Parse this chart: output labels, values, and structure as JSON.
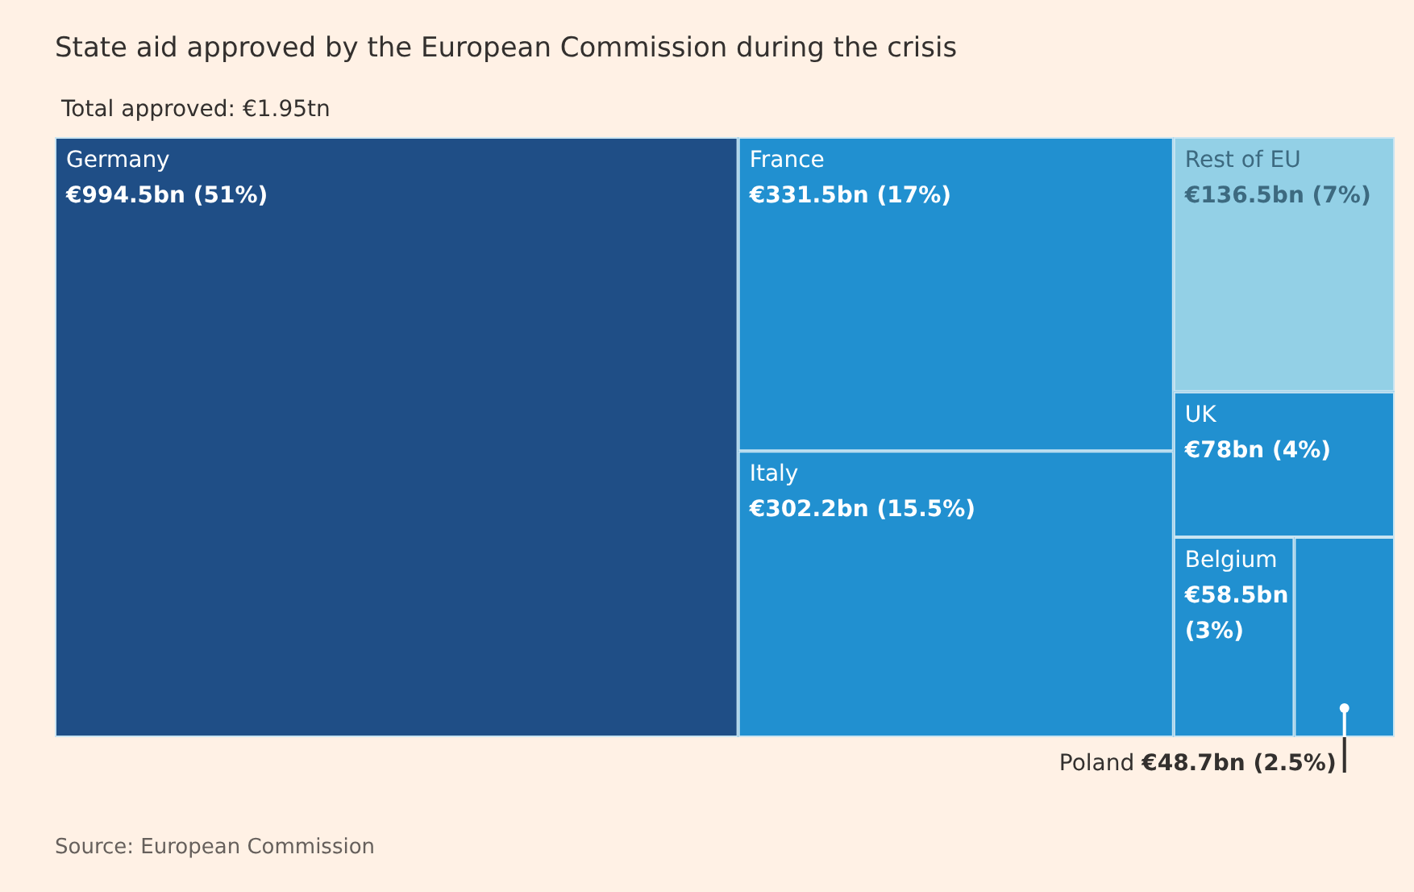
{
  "chart_data": {
    "type": "other",
    "title": "State aid approved by the European Commission during the crisis",
    "annotations": [
      "Total approved: €1.95tn",
      "Source: European Commission",
      {
        "text": "(51%)",
        "x": "Germany"
      },
      {
        "text": "(17%)",
        "x": "France"
      },
      {
        "text": "(15.5%)",
        "x": "Italy"
      },
      {
        "text": "(7%)",
        "x": "Rest of EU"
      },
      {
        "text": "(4%)",
        "x": "UK"
      },
      {
        "text": "(3%)",
        "x": "Belgium"
      },
      {
        "text": "(2.5%)",
        "x": "Poland"
      }
    ],
    "categories": [
      "Germany",
      "France",
      "Italy",
      "Rest of EU",
      "UK",
      "Belgium",
      "Poland"
    ],
    "values": [
      994.5,
      331.5,
      302.2,
      136.5,
      78,
      58.5,
      48.7
    ],
    "value_labels": [
      "€994.5bn",
      "€331.5bn",
      "€302.2bn",
      "€136.5bn",
      "€78bn",
      "€58.5bn",
      "€48.7bn"
    ],
    "colors": [
      "#1f4e86",
      "#2190d0",
      "#2190d0",
      "#93d0e6",
      "#2190d0",
      "#2190d0",
      "#2190d0"
    ]
  }
}
